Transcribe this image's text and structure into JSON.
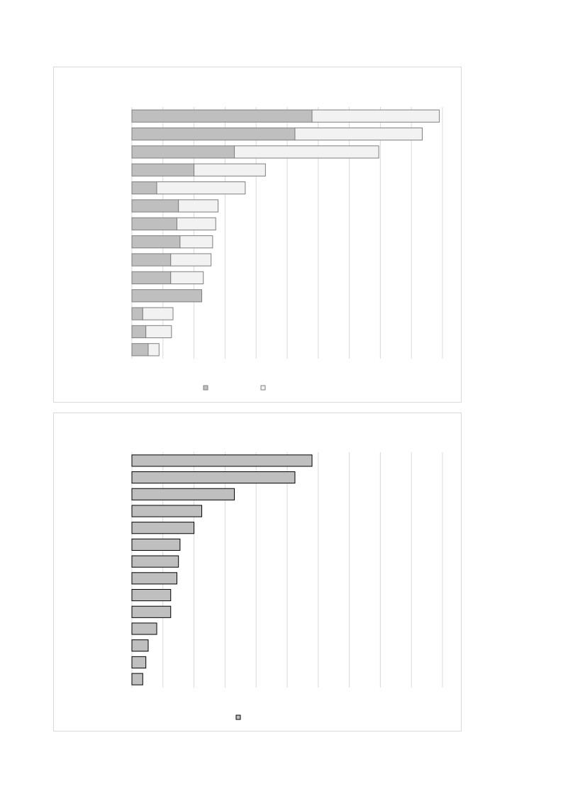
{
  "colors": {
    "series_primary": "#bfbfbf",
    "series_secondary": "#f2f2f2",
    "gridline": "#d9d9d9",
    "panel_border": "#d9d9d9",
    "bar_stroke": "#7f7f7f",
    "bar_stroke_dark": "#000000"
  },
  "chart_data": [
    {
      "type": "bar",
      "orientation": "horizontal",
      "stacked": true,
      "categories": [
        "",
        "",
        "",
        "",
        "",
        "",
        "",
        "",
        "",
        "",
        "",
        "",
        "",
        ""
      ],
      "series": [
        {
          "values": [
            11.6,
            10.5,
            6.6,
            4.0,
            1.6,
            3.0,
            2.9,
            3.1,
            2.5,
            2.5,
            4.5,
            0.7,
            0.9,
            1.05
          ]
        },
        {
          "values": [
            8.2,
            8.2,
            9.3,
            4.6,
            5.7,
            2.55,
            2.5,
            2.1,
            2.6,
            2.1,
            0,
            1.95,
            1.65,
            0.7
          ]
        }
      ],
      "xlim": [
        0,
        20
      ],
      "grid": true,
      "legend": "bottom",
      "title": "",
      "xlabel": "",
      "ylabel": ""
    },
    {
      "type": "bar",
      "orientation": "horizontal",
      "stacked": false,
      "categories": [
        "",
        "",
        "",
        "",
        "",
        "",
        "",
        "",
        "",
        "",
        "",
        "",
        "",
        ""
      ],
      "series": [
        {
          "values": [
            11.6,
            10.5,
            6.6,
            4.5,
            4.0,
            3.1,
            3.0,
            2.9,
            2.5,
            2.5,
            1.6,
            1.05,
            0.9,
            0.7
          ]
        }
      ],
      "xlim": [
        0,
        20
      ],
      "grid": true,
      "legend": "bottom",
      "title": "",
      "xlabel": "",
      "ylabel": ""
    }
  ]
}
